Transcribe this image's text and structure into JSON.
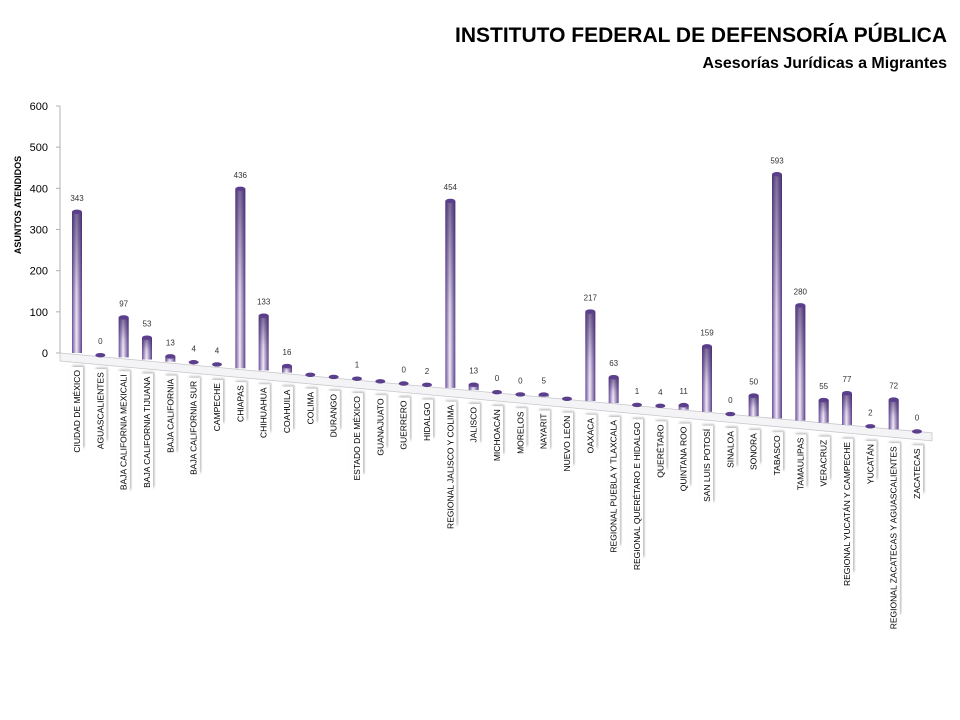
{
  "chart_data": {
    "type": "bar",
    "title": "INSTITUTO FEDERAL DE DEFENSORÍA PÚBLICA",
    "subtitle": "Asesorías  Jurídicas  a Migrantes",
    "xlabel": "",
    "ylabel": "ASUNTOS ATENDIDOS",
    "ylim": [
      0,
      600
    ],
    "yticks": [
      "0",
      "100",
      "200",
      "300",
      "400",
      "500",
      "600"
    ],
    "grid": false,
    "legend": "none",
    "bar_color_dark": "#5b3f8c",
    "bar_color_light": "#e8e0f2",
    "categories": [
      "CIUDAD DE MÉXICO",
      "AGUASCALIENTES",
      "BAJA CALIFORNIA MEXICALI",
      "BAJA CALIFORNIA TIJUANA",
      "BAJA CALIFORNIA",
      "BAJA CALIFORNIA SUR",
      "CAMPECHE",
      "CHIAPAS",
      "CHIHUAHUA",
      "COAHUILA",
      "COLIMA",
      "DURANGO",
      "ESTADO DE MÉXICO",
      "GUANAJUATO",
      "GUERRERO",
      "HIDALGO",
      "REGIONAL JALISCO Y COLIMA",
      "JALISCO",
      "MICHOACÁN",
      "MORELOS",
      "NAYARIT",
      "NUEVO LEÓN",
      "OAXACA",
      "REGIONAL PUEBLA Y TLAXCALA",
      "REGIONAL QUERÉTARO E HIDALGO",
      "QUERÉTARO",
      "QUINTANA ROO",
      "SAN LUIS POTOSÍ",
      "SINALOA",
      "SONORA",
      "TABASCO",
      "TAMAULIPAS",
      "VERACRUZ",
      "REGIONAL YUCATÁN Y CAMPECHE",
      "YUCATÁN",
      "REGIONAL ZACATECAS Y AGUASCALIENTES",
      "ZACATECAS"
    ],
    "values": [
      343,
      0,
      97,
      53,
      13,
      4,
      4,
      436,
      133,
      16,
      null,
      null,
      1,
      null,
      0,
      2,
      454,
      13,
      0,
      0,
      5,
      null,
      217,
      63,
      1,
      4,
      11,
      159,
      0,
      50,
      593,
      280,
      55,
      77,
      2,
      72,
      0
    ],
    "data_labels": [
      "343",
      "0",
      "97",
      "53",
      "13",
      "4",
      "4",
      "436",
      "133",
      "16",
      "",
      "",
      "1",
      "",
      "0",
      "2",
      "454",
      "13",
      "0",
      "0",
      "5",
      "",
      "217",
      "63",
      "1",
      "4",
      "11",
      "159",
      "0",
      "50",
      "593",
      "280",
      "55",
      "77",
      "2",
      "72",
      "0"
    ]
  }
}
